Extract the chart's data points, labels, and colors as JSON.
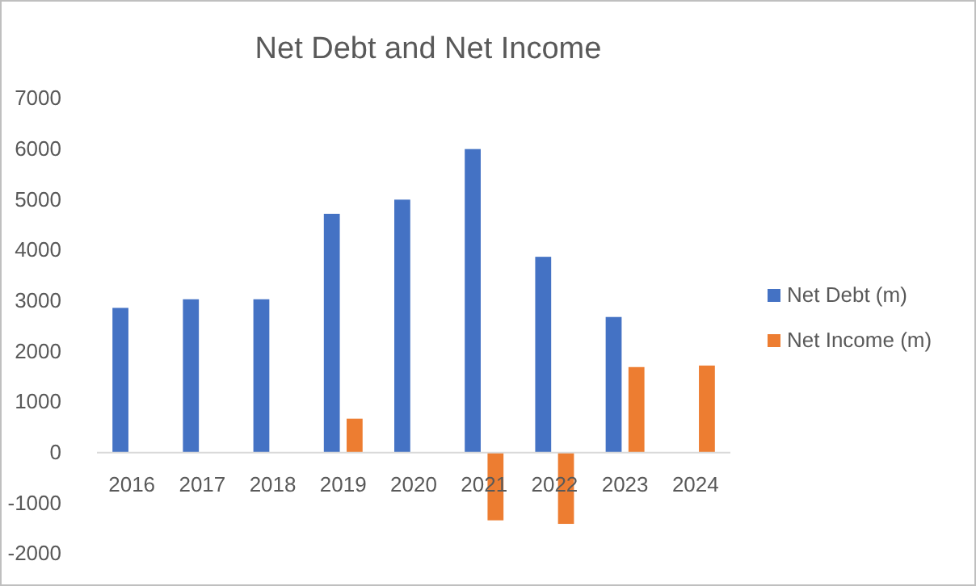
{
  "chart_data": {
    "type": "bar",
    "title": "Net Debt and Net Income",
    "categories": [
      "2016",
      "2017",
      "2018",
      "2019",
      "2020",
      "2021",
      "2022",
      "2023",
      "2024"
    ],
    "series": [
      {
        "name": "Net Debt (m)",
        "color": "#4472c4",
        "values": [
          2860,
          3030,
          3030,
          4720,
          5000,
          6000,
          3870,
          2680,
          null
        ]
      },
      {
        "name": "Net Income (m)",
        "color": "#ed7d31",
        "values": [
          null,
          null,
          null,
          670,
          null,
          -1340,
          -1410,
          1690,
          1720
        ]
      }
    ],
    "ylim": [
      -2000,
      7000
    ],
    "yticks": [
      -2000,
      -1000,
      0,
      1000,
      2000,
      3000,
      4000,
      5000,
      6000,
      7000
    ],
    "grid": false,
    "legend": "right"
  }
}
